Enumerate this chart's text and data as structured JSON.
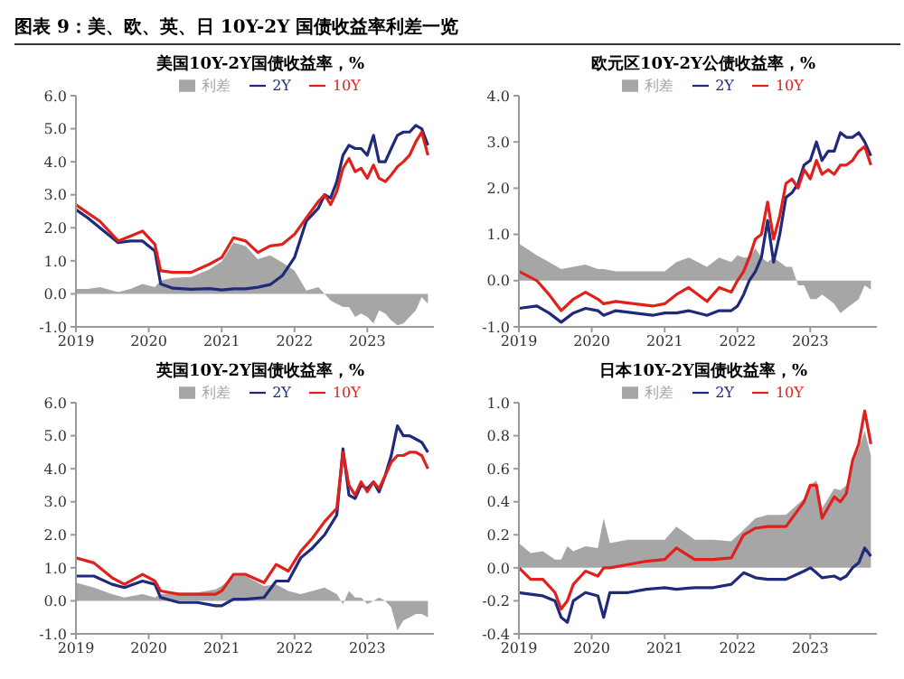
{
  "chart_data": [
    {
      "type": "line",
      "title": "美国10Y-2Y国债收益率，%",
      "annotations": [
        "图表 9：美、欧、英、日 10Y-2Y 国债收益率利差一览"
      ],
      "legend": "top",
      "x": [
        "2019-01",
        "2019-03",
        "2019-05",
        "2019-08",
        "2019-10",
        "2019-12",
        "2020-02",
        "2020-03",
        "2020-05",
        "2020-08",
        "2020-11",
        "2021-01",
        "2021-03",
        "2021-05",
        "2021-07",
        "2021-09",
        "2021-11",
        "2022-01",
        "2022-03",
        "2022-05",
        "2022-06",
        "2022-07",
        "2022-08",
        "2022-09",
        "2022-10",
        "2022-11",
        "2022-12",
        "2023-01",
        "2023-02",
        "2023-03",
        "2023-04",
        "2023-05",
        "2023-06",
        "2023-07",
        "2023-08",
        "2023-09",
        "2023-10",
        "2023-11"
      ],
      "xlim": [
        "2019",
        "2023-12"
      ],
      "xticks": [
        "2019",
        "2020",
        "2021",
        "2022",
        "2023"
      ],
      "ylim": [
        -1,
        6
      ],
      "yticks": [
        {
          "value": -1,
          "label": "-1.0"
        },
        {
          "value": 0,
          "label": "0.0"
        },
        {
          "value": 1,
          "label": "1.0"
        },
        {
          "value": 2,
          "label": "2.0"
        },
        {
          "value": 3,
          "label": "3.0"
        },
        {
          "value": 4,
          "label": "4.0"
        },
        {
          "value": 5,
          "label": "5.0"
        },
        {
          "value": 6,
          "label": "6.0"
        }
      ],
      "series": [
        {
          "name": "利差",
          "type": "area",
          "color": "#a6a6a6",
          "values": [
            0.15,
            0.15,
            0.2,
            0.05,
            0.15,
            0.3,
            0.2,
            0.4,
            0.48,
            0.51,
            0.74,
            0.98,
            1.55,
            1.45,
            1.05,
            1.17,
            0.95,
            0.7,
            0.1,
            0.2,
            0,
            -0.2,
            -0.3,
            -0.4,
            -0.4,
            -0.7,
            -0.6,
            -0.7,
            -0.9,
            -0.5,
            -0.6,
            -0.8,
            -0.95,
            -0.9,
            -0.7,
            -0.5,
            -0.1,
            -0.3
          ]
        },
        {
          "name": "2Y",
          "type": "line",
          "color": "#1f2a7a",
          "values": [
            2.55,
            2.3,
            2.0,
            1.55,
            1.6,
            1.6,
            1.3,
            0.3,
            0.17,
            0.14,
            0.16,
            0.12,
            0.15,
            0.15,
            0.2,
            0.28,
            0.55,
            1.1,
            2.2,
            2.6,
            3.0,
            2.9,
            3.4,
            4.2,
            4.5,
            4.4,
            4.4,
            4.2,
            4.8,
            4.0,
            4.0,
            4.4,
            4.8,
            4.9,
            4.9,
            5.1,
            5.0,
            4.5
          ]
        },
        {
          "name": "10Y",
          "type": "line",
          "color": "#e0201b",
          "values": [
            2.7,
            2.45,
            2.2,
            1.6,
            1.75,
            1.9,
            1.5,
            0.7,
            0.65,
            0.65,
            0.9,
            1.1,
            1.7,
            1.6,
            1.25,
            1.45,
            1.5,
            1.8,
            2.3,
            2.8,
            3.0,
            2.7,
            3.1,
            3.8,
            4.1,
            3.7,
            3.8,
            3.5,
            3.9,
            3.5,
            3.4,
            3.6,
            3.85,
            4.0,
            4.2,
            4.6,
            4.9,
            4.2
          ]
        }
      ]
    },
    {
      "type": "line",
      "title": "欧元区10Y-2Y公债收益率，%",
      "legend": "top",
      "x": [
        "2019-01",
        "2019-04",
        "2019-06",
        "2019-08",
        "2019-10",
        "2019-12",
        "2020-02",
        "2020-03",
        "2020-05",
        "2020-08",
        "2020-11",
        "2021-01",
        "2021-03",
        "2021-05",
        "2021-08",
        "2021-10",
        "2021-12",
        "2022-01",
        "2022-02",
        "2022-03",
        "2022-04",
        "2022-05",
        "2022-06",
        "2022-07",
        "2022-08",
        "2022-09",
        "2022-10",
        "2022-11",
        "2022-12",
        "2023-01",
        "2023-02",
        "2023-03",
        "2023-04",
        "2023-05",
        "2023-06",
        "2023-07",
        "2023-08",
        "2023-09",
        "2023-10",
        "2023-11"
      ],
      "xlim": [
        "2019",
        "2023-12"
      ],
      "xticks": [
        "2019",
        "2020",
        "2021",
        "2022",
        "2023"
      ],
      "ylim": [
        -1,
        4
      ],
      "yticks": [
        {
          "value": -1,
          "label": "-1.0"
        },
        {
          "value": 0,
          "label": "0.0"
        },
        {
          "value": 1,
          "label": "1.0"
        },
        {
          "value": 2,
          "label": "2.0"
        },
        {
          "value": 3,
          "label": "3.0"
        },
        {
          "value": 4,
          "label": "4.0"
        }
      ],
      "series": [
        {
          "name": "利差",
          "type": "area",
          "color": "#a6a6a6",
          "values": [
            0.8,
            0.55,
            0.4,
            0.25,
            0.3,
            0.35,
            0.25,
            0.25,
            0.2,
            0.2,
            0.2,
            0.2,
            0.4,
            0.5,
            0.3,
            0.5,
            0.4,
            0.55,
            0.5,
            0.5,
            0.7,
            0.5,
            0.4,
            0.5,
            0.4,
            0.3,
            0.3,
            -0.1,
            -0.1,
            -0.4,
            -0.4,
            -0.3,
            -0.4,
            -0.5,
            -0.7,
            -0.6,
            -0.5,
            -0.4,
            -0.1,
            -0.2
          ]
        },
        {
          "name": "2Y",
          "type": "line",
          "color": "#1f2a7a",
          "values": [
            -0.6,
            -0.55,
            -0.7,
            -0.9,
            -0.7,
            -0.6,
            -0.65,
            -0.75,
            -0.65,
            -0.7,
            -0.75,
            -0.7,
            -0.7,
            -0.65,
            -0.75,
            -0.65,
            -0.65,
            -0.55,
            -0.3,
            0.0,
            0.2,
            0.5,
            1.3,
            0.4,
            1.0,
            1.8,
            1.9,
            2.1,
            2.5,
            2.6,
            3.0,
            2.6,
            2.8,
            2.8,
            3.2,
            3.1,
            3.1,
            3.2,
            3.0,
            2.7
          ]
        },
        {
          "name": "10Y",
          "type": "line",
          "color": "#e0201b",
          "values": [
            0.2,
            0.0,
            -0.3,
            -0.65,
            -0.4,
            -0.25,
            -0.4,
            -0.5,
            -0.45,
            -0.5,
            -0.55,
            -0.5,
            -0.3,
            -0.15,
            -0.45,
            -0.15,
            -0.25,
            0.0,
            0.2,
            0.5,
            0.9,
            1.0,
            1.7,
            0.9,
            1.4,
            2.1,
            2.2,
            2.0,
            2.4,
            2.2,
            2.6,
            2.3,
            2.4,
            2.3,
            2.5,
            2.5,
            2.6,
            2.8,
            2.9,
            2.5
          ]
        }
      ]
    },
    {
      "type": "line",
      "title": "英国10Y-2Y国债收益率，%",
      "legend": "top",
      "x": [
        "2019-01",
        "2019-04",
        "2019-07",
        "2019-09",
        "2019-12",
        "2020-02",
        "2020-03",
        "2020-06",
        "2020-09",
        "2020-12",
        "2021-01",
        "2021-03",
        "2021-05",
        "2021-08",
        "2021-10",
        "2021-12",
        "2022-02",
        "2022-04",
        "2022-06",
        "2022-08",
        "2022-09",
        "2022-10",
        "2022-11",
        "2022-12",
        "2023-01",
        "2023-02",
        "2023-03",
        "2023-04",
        "2023-05",
        "2023-06",
        "2023-07",
        "2023-08",
        "2023-09",
        "2023-10",
        "2023-11"
      ],
      "xlim": [
        "2019",
        "2023-12"
      ],
      "xticks": [
        "2019",
        "2020",
        "2021",
        "2022",
        "2023"
      ],
      "ylim": [
        -1,
        6
      ],
      "yticks": [
        {
          "value": -1,
          "label": "-1.0"
        },
        {
          "value": 0,
          "label": "0.0"
        },
        {
          "value": 1,
          "label": "1.0"
        },
        {
          "value": 2,
          "label": "2.0"
        },
        {
          "value": 3,
          "label": "3.0"
        },
        {
          "value": 4,
          "label": "4.0"
        },
        {
          "value": 5,
          "label": "5.0"
        },
        {
          "value": 6,
          "label": "6.0"
        }
      ],
      "series": [
        {
          "name": "利差",
          "type": "area",
          "color": "#a6a6a6",
          "values": [
            0.55,
            0.4,
            0.2,
            0.1,
            0.2,
            0.1,
            0.2,
            0.25,
            0.25,
            0.35,
            0.45,
            0.75,
            0.75,
            0.45,
            0.5,
            0.3,
            0.2,
            0.3,
            0.4,
            0.2,
            -0.1,
            0.3,
            0.1,
            0.1,
            -0.1,
            0,
            0.1,
            0,
            -0.2,
            -0.9,
            -0.6,
            -0.5,
            -0.4,
            -0.4,
            -0.5
          ]
        },
        {
          "name": "2Y",
          "type": "line",
          "color": "#1f2a7a",
          "values": [
            0.75,
            0.75,
            0.5,
            0.4,
            0.6,
            0.5,
            0.1,
            -0.05,
            -0.05,
            -0.15,
            -0.15,
            0.05,
            0.05,
            0.1,
            0.6,
            0.6,
            1.3,
            1.6,
            2.0,
            2.6,
            4.6,
            3.2,
            3.1,
            3.5,
            3.4,
            3.6,
            3.3,
            3.8,
            4.4,
            5.3,
            5.0,
            5.0,
            4.9,
            4.8,
            4.5
          ]
        },
        {
          "name": "10Y",
          "type": "line",
          "color": "#e0201b",
          "values": [
            1.3,
            1.15,
            0.7,
            0.5,
            0.8,
            0.6,
            0.3,
            0.2,
            0.2,
            0.2,
            0.3,
            0.8,
            0.8,
            0.55,
            1.1,
            0.9,
            1.5,
            1.9,
            2.4,
            2.8,
            4.5,
            3.5,
            3.2,
            3.6,
            3.3,
            3.6,
            3.4,
            3.8,
            4.2,
            4.4,
            4.4,
            4.5,
            4.5,
            4.4,
            4.0
          ]
        }
      ]
    },
    {
      "type": "line",
      "title": "日本10Y-2Y国债收益率，%",
      "legend": "top",
      "x": [
        "2019-01",
        "2019-03",
        "2019-05",
        "2019-07",
        "2019-08",
        "2019-09",
        "2019-10",
        "2019-12",
        "2020-02",
        "2020-03",
        "2020-04",
        "2020-07",
        "2020-10",
        "2021-01",
        "2021-03",
        "2021-06",
        "2021-09",
        "2021-12",
        "2022-02",
        "2022-04",
        "2022-06",
        "2022-09",
        "2022-12",
        "2023-01",
        "2023-02",
        "2023-03",
        "2023-05",
        "2023-06",
        "2023-07",
        "2023-08",
        "2023-09",
        "2023-10",
        "2023-11"
      ],
      "xlim": [
        "2019",
        "2023-12"
      ],
      "xticks": [
        "2019",
        "2020",
        "2021",
        "2022",
        "2023"
      ],
      "ylim": [
        -0.4,
        1.0
      ],
      "yticks": [
        {
          "value": -0.4,
          "label": "-0.4"
        },
        {
          "value": -0.2,
          "label": "-0.2"
        },
        {
          "value": 0,
          "label": "0.0"
        },
        {
          "value": 0.2,
          "label": "0.2"
        },
        {
          "value": 0.4,
          "label": "0.4"
        },
        {
          "value": 0.6,
          "label": "0.6"
        },
        {
          "value": 0.8,
          "label": "0.8"
        },
        {
          "value": 1.0,
          "label": "1.0"
        }
      ],
      "series": [
        {
          "name": "利差",
          "type": "area",
          "color": "#a6a6a6",
          "values": [
            0.15,
            0.09,
            0.1,
            0.05,
            0.05,
            0.13,
            0.1,
            0.13,
            0.12,
            0.3,
            0.15,
            0.17,
            0.17,
            0.17,
            0.25,
            0.17,
            0.17,
            0.16,
            0.23,
            0.3,
            0.32,
            0.32,
            0.42,
            0.5,
            0.53,
            0.36,
            0.48,
            0.47,
            0.5,
            0.65,
            0.72,
            0.83,
            0.68
          ]
        },
        {
          "name": "2Y",
          "type": "line",
          "color": "#1f2a7a",
          "values": [
            -0.15,
            -0.16,
            -0.17,
            -0.2,
            -0.3,
            -0.33,
            -0.2,
            -0.15,
            -0.17,
            -0.3,
            -0.15,
            -0.15,
            -0.13,
            -0.12,
            -0.13,
            -0.12,
            -0.12,
            -0.1,
            -0.03,
            -0.06,
            -0.07,
            -0.07,
            -0.02,
            0,
            -0.03,
            -0.06,
            -0.05,
            -0.07,
            -0.05,
            0,
            0.03,
            0.12,
            0.07
          ]
        },
        {
          "name": "10Y",
          "type": "line",
          "color": "#e0201b",
          "values": [
            0,
            -0.07,
            -0.07,
            -0.15,
            -0.25,
            -0.2,
            -0.1,
            -0.02,
            -0.05,
            0,
            0,
            0.02,
            0.04,
            0.05,
            0.12,
            0.05,
            0.05,
            0.06,
            0.2,
            0.24,
            0.25,
            0.25,
            0.4,
            0.5,
            0.5,
            0.3,
            0.43,
            0.4,
            0.45,
            0.65,
            0.75,
            0.95,
            0.75
          ]
        }
      ]
    }
  ]
}
